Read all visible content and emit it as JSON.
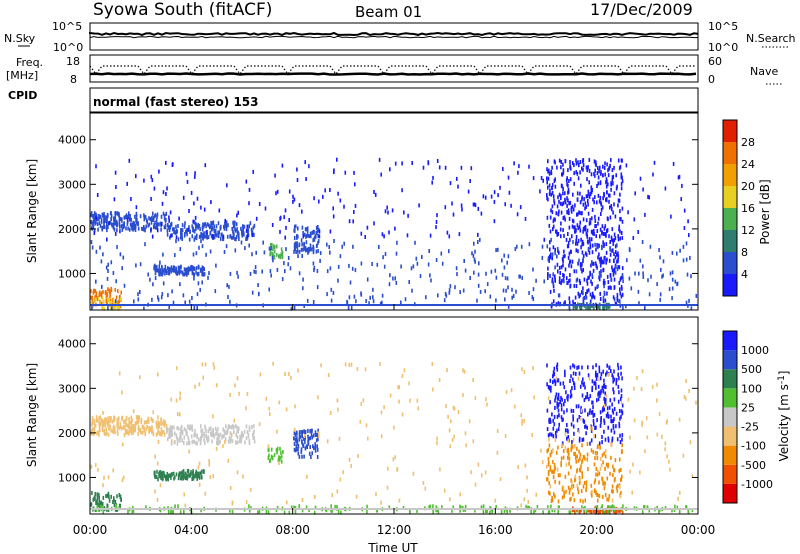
{
  "header": {
    "station": "Syowa South (fitACF)",
    "beam": "Beam 01",
    "date": "17/Dec/2009"
  },
  "top_panel": {
    "left_label": "N.Sky",
    "right_label": "N.Search",
    "left_ticks": [
      "10^5",
      "10^0"
    ],
    "right_ticks": [
      "10^5",
      "10^0"
    ]
  },
  "freq_panel": {
    "left_label_1": "Freq.",
    "left_label_2": "[MHz]",
    "left_ticks": [
      "18",
      "8"
    ],
    "right_label": "Nave",
    "right_ticks": [
      "60",
      "0"
    ]
  },
  "cpid": {
    "label": "CPID",
    "mode": "normal (fast stereo) 153"
  },
  "colors": {
    "power": [
      "#1a1aff",
      "#2a4ecf",
      "#2e7d6e",
      "#4caf50",
      "#e8d020",
      "#f0a000",
      "#f07000",
      "#e02000"
    ],
    "velocity": [
      "#e00000",
      "#f05000",
      "#f08a00",
      "#f0c070",
      "#c8c8c8",
      "#50c030",
      "#2e8050",
      "#2a4ecf",
      "#1a1aff"
    ]
  },
  "chart_data": [
    {
      "type": "heatmap",
      "title": "Power",
      "ylabel": "Slant Range [km]",
      "yticks": [
        "1000",
        "2000",
        "3000",
        "4000"
      ],
      "ylim": [
        180,
        4600
      ],
      "xlim": [
        0,
        24
      ],
      "colorbar_label": "Power [dB]",
      "colorbar_ticks": [
        "4",
        "8",
        "12",
        "16",
        "20",
        "24",
        "28"
      ],
      "regions": [
        {
          "t": [
            0.0,
            3.0
          ],
          "r": [
            2000,
            2400
          ],
          "c": 1,
          "n": 220
        },
        {
          "t": [
            3.0,
            6.5
          ],
          "r": [
            1800,
            2200
          ],
          "c": 1,
          "n": 200
        },
        {
          "t": [
            0.0,
            1.2
          ],
          "r": [
            300,
            700
          ],
          "c": 6,
          "n": 70
        },
        {
          "t": [
            0.0,
            1.2
          ],
          "r": [
            200,
            500
          ],
          "c": 4,
          "n": 40
        },
        {
          "t": [
            2.5,
            4.5
          ],
          "r": [
            1000,
            1200
          ],
          "c": 1,
          "n": 120
        },
        {
          "t": [
            7.0,
            7.6
          ],
          "r": [
            1400,
            1700
          ],
          "c": 3,
          "n": 25
        },
        {
          "t": [
            8.0,
            9.0
          ],
          "r": [
            1500,
            2100
          ],
          "c": 1,
          "n": 80
        },
        {
          "t": [
            18.0,
            21.0
          ],
          "r": [
            300,
            3600
          ],
          "c": 0,
          "n": 600
        },
        {
          "t": [
            19.0,
            20.5
          ],
          "r": [
            250,
            350
          ],
          "c": 2,
          "n": 50
        },
        {
          "t": [
            0.0,
            24.0
          ],
          "r": [
            250,
            1800
          ],
          "c": 1,
          "n": 400
        },
        {
          "t": [
            0.0,
            24.0
          ],
          "r": [
            1800,
            3600
          ],
          "c": 0,
          "n": 260
        }
      ]
    },
    {
      "type": "heatmap",
      "title": "Velocity",
      "ylabel": "Slant Range [km]",
      "yticks": [
        "1000",
        "2000",
        "3000",
        "4000"
      ],
      "ylim": [
        180,
        4600
      ],
      "xlim": [
        0,
        24
      ],
      "xticks": [
        "00:00",
        "04:00",
        "08:00",
        "12:00",
        "16:00",
        "20:00",
        "00:00"
      ],
      "xlabel": "Time UT",
      "colorbar_label": "Velocity [m s^-1]",
      "colorbar_ticks": [
        "-1000",
        "-500",
        "-100",
        "-25",
        "25",
        "100",
        "500",
        "1000"
      ],
      "regions": [
        {
          "t": [
            0.0,
            3.0
          ],
          "r": [
            2000,
            2400
          ],
          "c": 3,
          "n": 220
        },
        {
          "t": [
            3.0,
            6.5
          ],
          "r": [
            1800,
            2200
          ],
          "c": 4,
          "n": 200
        },
        {
          "t": [
            0.0,
            1.2
          ],
          "r": [
            300,
            700
          ],
          "c": 6,
          "n": 60
        },
        {
          "t": [
            2.5,
            4.5
          ],
          "r": [
            1000,
            1200
          ],
          "c": 6,
          "n": 120
        },
        {
          "t": [
            7.0,
            7.6
          ],
          "r": [
            1400,
            1700
          ],
          "c": 5,
          "n": 25
        },
        {
          "t": [
            8.0,
            9.0
          ],
          "r": [
            1500,
            2100
          ],
          "c": 7,
          "n": 80
        },
        {
          "t": [
            18.0,
            21.0
          ],
          "r": [
            1800,
            3600
          ],
          "c": 8,
          "n": 300
        },
        {
          "t": [
            18.0,
            21.0
          ],
          "r": [
            500,
            1800
          ],
          "c": 2,
          "n": 200
        },
        {
          "t": [
            19.0,
            21.0
          ],
          "r": [
            250,
            350
          ],
          "c": 1,
          "n": 60
        },
        {
          "t": [
            0.0,
            24.0
          ],
          "r": [
            250,
            400
          ],
          "c": 5,
          "n": 200
        },
        {
          "t": [
            0.0,
            24.0
          ],
          "r": [
            400,
            3600
          ],
          "c": 3,
          "n": 300
        }
      ]
    }
  ]
}
